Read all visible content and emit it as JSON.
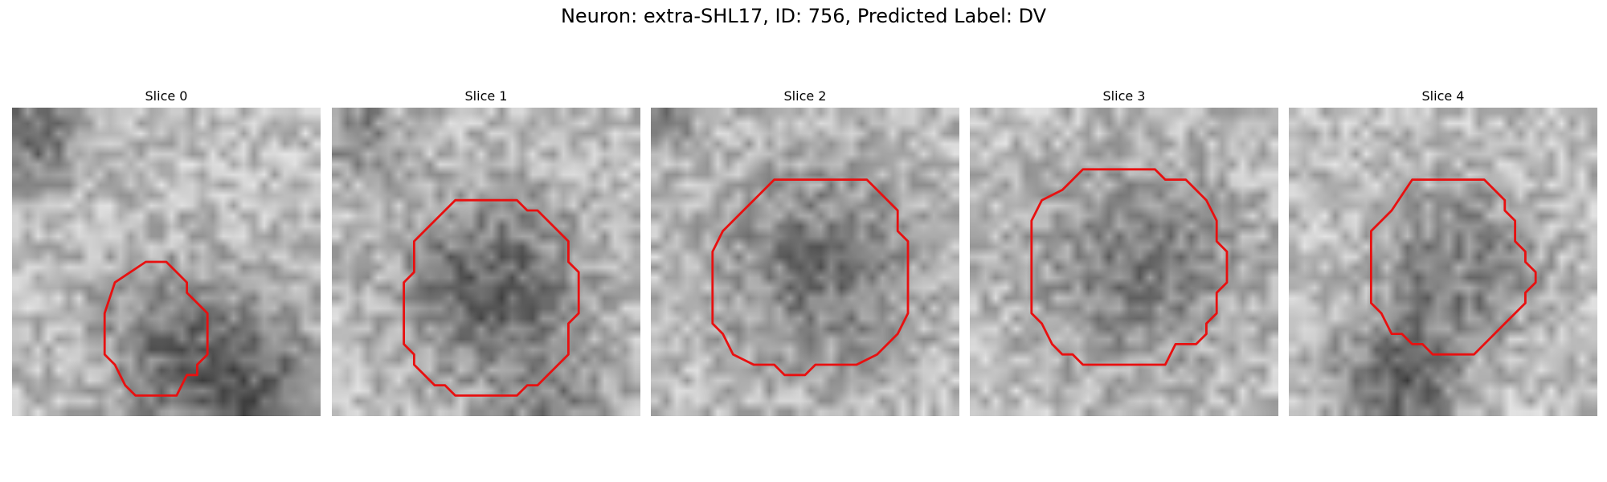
{
  "figure": {
    "title": "Neuron: extra-SHL17, ID: 756, Predicted Label: DV"
  },
  "slices": [
    {
      "title": "Slice 0",
      "contour": [
        [
          13,
          15
        ],
        [
          15,
          15
        ],
        [
          17,
          17
        ],
        [
          17,
          18
        ],
        [
          19,
          20
        ],
        [
          19,
          24
        ],
        [
          18,
          25
        ],
        [
          18,
          26
        ],
        [
          17,
          26
        ],
        [
          16,
          28
        ],
        [
          12,
          28
        ],
        [
          11,
          27
        ],
        [
          10,
          25
        ],
        [
          9,
          24
        ],
        [
          9,
          20
        ],
        [
          10,
          17
        ]
      ]
    },
    {
      "title": "Slice 1",
      "contour": [
        [
          12,
          9
        ],
        [
          18,
          9
        ],
        [
          19,
          10
        ],
        [
          20,
          10
        ],
        [
          23,
          13
        ],
        [
          23,
          15
        ],
        [
          24,
          16
        ],
        [
          24,
          20
        ],
        [
          23,
          21
        ],
        [
          23,
          24
        ],
        [
          20,
          27
        ],
        [
          19,
          27
        ],
        [
          18,
          28
        ],
        [
          12,
          28
        ],
        [
          11,
          27
        ],
        [
          10,
          27
        ],
        [
          8,
          25
        ],
        [
          8,
          24
        ],
        [
          7,
          23
        ],
        [
          7,
          17
        ],
        [
          8,
          16
        ],
        [
          8,
          13
        ],
        [
          10,
          11
        ],
        [
          11,
          10
        ]
      ]
    },
    {
      "title": "Slice 2",
      "contour": [
        [
          12,
          7
        ],
        [
          21,
          7
        ],
        [
          24,
          10
        ],
        [
          24,
          12
        ],
        [
          25,
          13
        ],
        [
          25,
          20
        ],
        [
          24,
          22
        ],
        [
          22,
          24
        ],
        [
          20,
          25
        ],
        [
          16,
          25
        ],
        [
          15,
          26
        ],
        [
          13,
          26
        ],
        [
          12,
          25
        ],
        [
          10,
          25
        ],
        [
          8,
          24
        ],
        [
          7,
          22
        ],
        [
          6,
          21
        ],
        [
          6,
          14
        ],
        [
          7,
          12
        ],
        [
          9,
          10
        ],
        [
          10,
          9
        ]
      ]
    },
    {
      "title": "Slice 3",
      "contour": [
        [
          11,
          6
        ],
        [
          18,
          6
        ],
        [
          19,
          7
        ],
        [
          21,
          7
        ],
        [
          23,
          9
        ],
        [
          24,
          11
        ],
        [
          24,
          13
        ],
        [
          25,
          14
        ],
        [
          25,
          17
        ],
        [
          24,
          18
        ],
        [
          24,
          20
        ],
        [
          23,
          21
        ],
        [
          23,
          22
        ],
        [
          22,
          23
        ],
        [
          20,
          23
        ],
        [
          19,
          25
        ],
        [
          11,
          25
        ],
        [
          10,
          24
        ],
        [
          9,
          24
        ],
        [
          8,
          23
        ],
        [
          7,
          21
        ],
        [
          6,
          20
        ],
        [
          6,
          11
        ],
        [
          7,
          9
        ],
        [
          9,
          8
        ],
        [
          10,
          7
        ]
      ]
    },
    {
      "title": "Slice 4",
      "contour": [
        [
          12,
          7
        ],
        [
          19,
          7
        ],
        [
          21,
          9
        ],
        [
          21,
          10
        ],
        [
          22,
          11
        ],
        [
          22,
          13
        ],
        [
          23,
          14
        ],
        [
          23,
          15
        ],
        [
          24,
          16
        ],
        [
          24,
          17
        ],
        [
          23,
          18
        ],
        [
          23,
          19
        ],
        [
          22,
          20
        ],
        [
          21,
          21
        ],
        [
          20,
          22
        ],
        [
          18,
          24
        ],
        [
          14,
          24
        ],
        [
          13,
          23
        ],
        [
          12,
          23
        ],
        [
          11,
          22
        ],
        [
          10,
          22
        ],
        [
          9,
          20
        ],
        [
          8,
          19
        ],
        [
          8,
          12
        ],
        [
          10,
          10
        ]
      ]
    }
  ],
  "colors": {
    "contour": "#e81010"
  }
}
